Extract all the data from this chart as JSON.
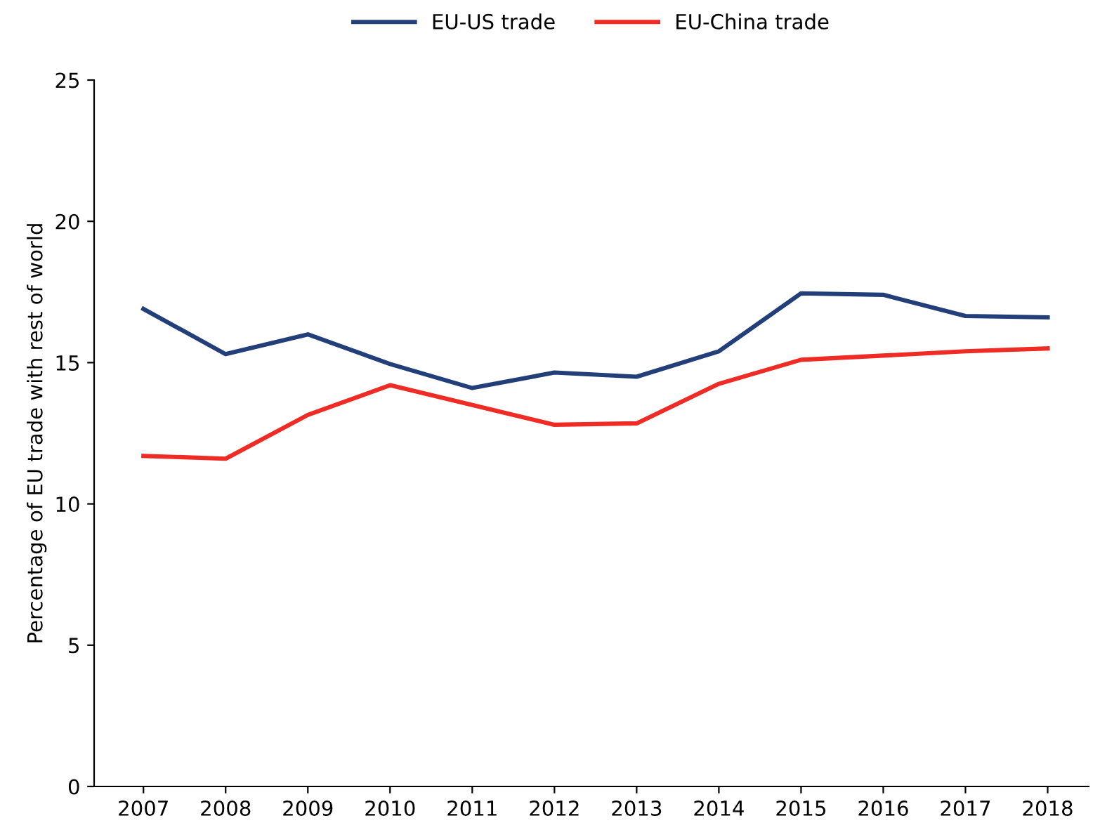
{
  "chart_data": {
    "type": "line",
    "ylabel": "Percentage of EU trade with rest of world",
    "categories": [
      "2007",
      "2008",
      "2009",
      "2010",
      "2011",
      "2012",
      "2013",
      "2014",
      "2015",
      "2016",
      "2017",
      "2018"
    ],
    "series": [
      {
        "name": "EU-US trade",
        "color": "#233f7a",
        "values": [
          16.9,
          15.3,
          16.0,
          14.95,
          14.1,
          14.65,
          14.5,
          15.4,
          17.45,
          17.4,
          16.65,
          16.6
        ]
      },
      {
        "name": "EU-China trade",
        "color": "#ee2b24",
        "values": [
          11.7,
          11.6,
          13.15,
          14.2,
          13.5,
          12.8,
          12.85,
          14.25,
          15.1,
          15.25,
          15.4,
          15.5
        ]
      }
    ],
    "ylim": [
      0,
      25
    ],
    "yticks": [
      0,
      5,
      10,
      15,
      20,
      25
    ],
    "grid": false,
    "legend": "top",
    "marker": "none",
    "line_style": "solid"
  }
}
